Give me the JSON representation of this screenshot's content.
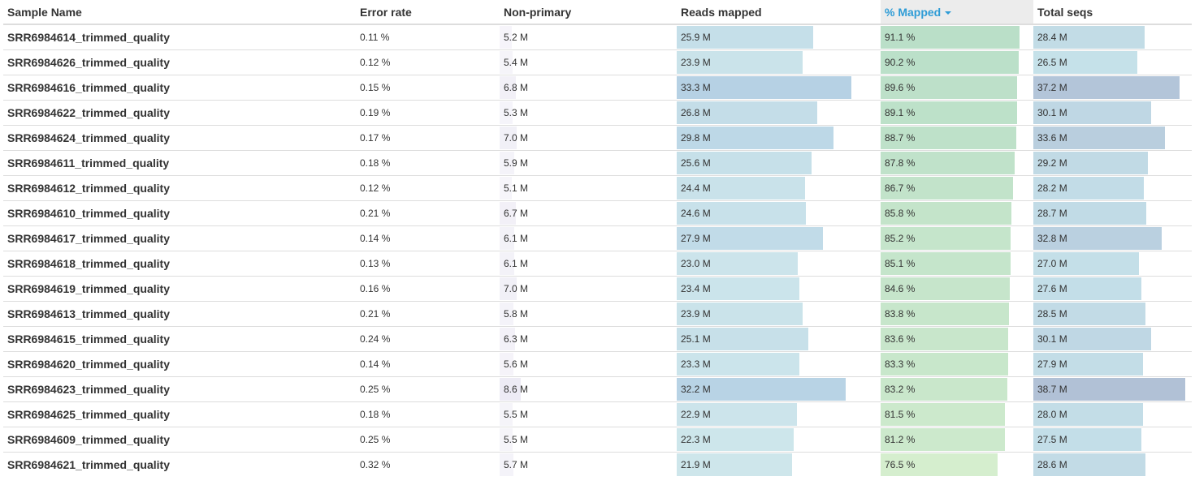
{
  "header": {
    "sample_name": "Sample Name",
    "error_rate": "Error rate",
    "non_primary": "Non-primary",
    "reads_mapped": "Reads mapped",
    "pct_mapped": "% Mapped",
    "total_seqs": "Total seqs"
  },
  "scales": {
    "non_primary_max": 12.8,
    "reads_mapped_max": 33.7,
    "pct_mapped_max": 100,
    "total_seqs_max": 38.7
  },
  "rows": [
    {
      "name": "SRR6984614_trimmed_quality",
      "error_rate": "0.11 %",
      "non_primary": "5.2 M",
      "reads_mapped": "25.9 M",
      "pct_mapped": "91.1 %",
      "total_seqs": "28.4 M",
      "np": 5.2,
      "rm": 25.9,
      "pm": 91.1,
      "ts": 28.4
    },
    {
      "name": "SRR6984626_trimmed_quality",
      "error_rate": "0.12 %",
      "non_primary": "5.4 M",
      "reads_mapped": "23.9 M",
      "pct_mapped": "90.2 %",
      "total_seqs": "26.5 M",
      "np": 5.4,
      "rm": 23.9,
      "pm": 90.2,
      "ts": 26.5
    },
    {
      "name": "SRR6984616_trimmed_quality",
      "error_rate": "0.15 %",
      "non_primary": "6.8 M",
      "reads_mapped": "33.3 M",
      "pct_mapped": "89.6 %",
      "total_seqs": "37.2 M",
      "np": 6.8,
      "rm": 33.3,
      "pm": 89.6,
      "ts": 37.2
    },
    {
      "name": "SRR6984622_trimmed_quality",
      "error_rate": "0.19 %",
      "non_primary": "5.3 M",
      "reads_mapped": "26.8 M",
      "pct_mapped": "89.1 %",
      "total_seqs": "30.1 M",
      "np": 5.3,
      "rm": 26.8,
      "pm": 89.1,
      "ts": 30.1
    },
    {
      "name": "SRR6984624_trimmed_quality",
      "error_rate": "0.17 %",
      "non_primary": "7.0 M",
      "reads_mapped": "29.8 M",
      "pct_mapped": "88.7 %",
      "total_seqs": "33.6 M",
      "np": 7.0,
      "rm": 29.8,
      "pm": 88.7,
      "ts": 33.6
    },
    {
      "name": "SRR6984611_trimmed_quality",
      "error_rate": "0.18 %",
      "non_primary": "5.9 M",
      "reads_mapped": "25.6 M",
      "pct_mapped": "87.8 %",
      "total_seqs": "29.2 M",
      "np": 5.9,
      "rm": 25.6,
      "pm": 87.8,
      "ts": 29.2
    },
    {
      "name": "SRR6984612_trimmed_quality",
      "error_rate": "0.12 %",
      "non_primary": "5.1 M",
      "reads_mapped": "24.4 M",
      "pct_mapped": "86.7 %",
      "total_seqs": "28.2 M",
      "np": 5.1,
      "rm": 24.4,
      "pm": 86.7,
      "ts": 28.2
    },
    {
      "name": "SRR6984610_trimmed_quality",
      "error_rate": "0.21 %",
      "non_primary": "6.7 M",
      "reads_mapped": "24.6 M",
      "pct_mapped": "85.8 %",
      "total_seqs": "28.7 M",
      "np": 6.7,
      "rm": 24.6,
      "pm": 85.8,
      "ts": 28.7
    },
    {
      "name": "SRR6984617_trimmed_quality",
      "error_rate": "0.14 %",
      "non_primary": "6.1 M",
      "reads_mapped": "27.9 M",
      "pct_mapped": "85.2 %",
      "total_seqs": "32.8 M",
      "np": 6.1,
      "rm": 27.9,
      "pm": 85.2,
      "ts": 32.8
    },
    {
      "name": "SRR6984618_trimmed_quality",
      "error_rate": "0.13 %",
      "non_primary": "6.1 M",
      "reads_mapped": "23.0 M",
      "pct_mapped": "85.1 %",
      "total_seqs": "27.0 M",
      "np": 6.1,
      "rm": 23.0,
      "pm": 85.1,
      "ts": 27.0
    },
    {
      "name": "SRR6984619_trimmed_quality",
      "error_rate": "0.16 %",
      "non_primary": "7.0 M",
      "reads_mapped": "23.4 M",
      "pct_mapped": "84.6 %",
      "total_seqs": "27.6 M",
      "np": 7.0,
      "rm": 23.4,
      "pm": 84.6,
      "ts": 27.6
    },
    {
      "name": "SRR6984613_trimmed_quality",
      "error_rate": "0.21 %",
      "non_primary": "5.8 M",
      "reads_mapped": "23.9 M",
      "pct_mapped": "83.8 %",
      "total_seqs": "28.5 M",
      "np": 5.8,
      "rm": 23.9,
      "pm": 83.8,
      "ts": 28.5
    },
    {
      "name": "SRR6984615_trimmed_quality",
      "error_rate": "0.24 %",
      "non_primary": "6.3 M",
      "reads_mapped": "25.1 M",
      "pct_mapped": "83.6 %",
      "total_seqs": "30.1 M",
      "np": 6.3,
      "rm": 25.1,
      "pm": 83.6,
      "ts": 30.1
    },
    {
      "name": "SRR6984620_trimmed_quality",
      "error_rate": "0.14 %",
      "non_primary": "5.6 M",
      "reads_mapped": "23.3 M",
      "pct_mapped": "83.3 %",
      "total_seqs": "27.9 M",
      "np": 5.6,
      "rm": 23.3,
      "pm": 83.3,
      "ts": 27.9
    },
    {
      "name": "SRR6984623_trimmed_quality",
      "error_rate": "0.25 %",
      "non_primary": "8.6 M",
      "reads_mapped": "32.2 M",
      "pct_mapped": "83.2 %",
      "total_seqs": "38.7 M",
      "np": 8.6,
      "rm": 32.2,
      "pm": 83.2,
      "ts": 38.7
    },
    {
      "name": "SRR6984625_trimmed_quality",
      "error_rate": "0.18 %",
      "non_primary": "5.5 M",
      "reads_mapped": "22.9 M",
      "pct_mapped": "81.5 %",
      "total_seqs": "28.0 M",
      "np": 5.5,
      "rm": 22.9,
      "pm": 81.5,
      "ts": 28.0
    },
    {
      "name": "SRR6984609_trimmed_quality",
      "error_rate": "0.25 %",
      "non_primary": "5.5 M",
      "reads_mapped": "22.3 M",
      "pct_mapped": "81.2 %",
      "total_seqs": "27.5 M",
      "np": 5.5,
      "rm": 22.3,
      "pm": 81.2,
      "ts": 27.5
    },
    {
      "name": "SRR6984621_trimmed_quality",
      "error_rate": "0.32 %",
      "non_primary": "5.7 M",
      "reads_mapped": "21.9 M",
      "pct_mapped": "76.5 %",
      "total_seqs": "28.6 M",
      "np": 5.7,
      "rm": 21.9,
      "pm": 76.5,
      "ts": 28.6
    }
  ]
}
